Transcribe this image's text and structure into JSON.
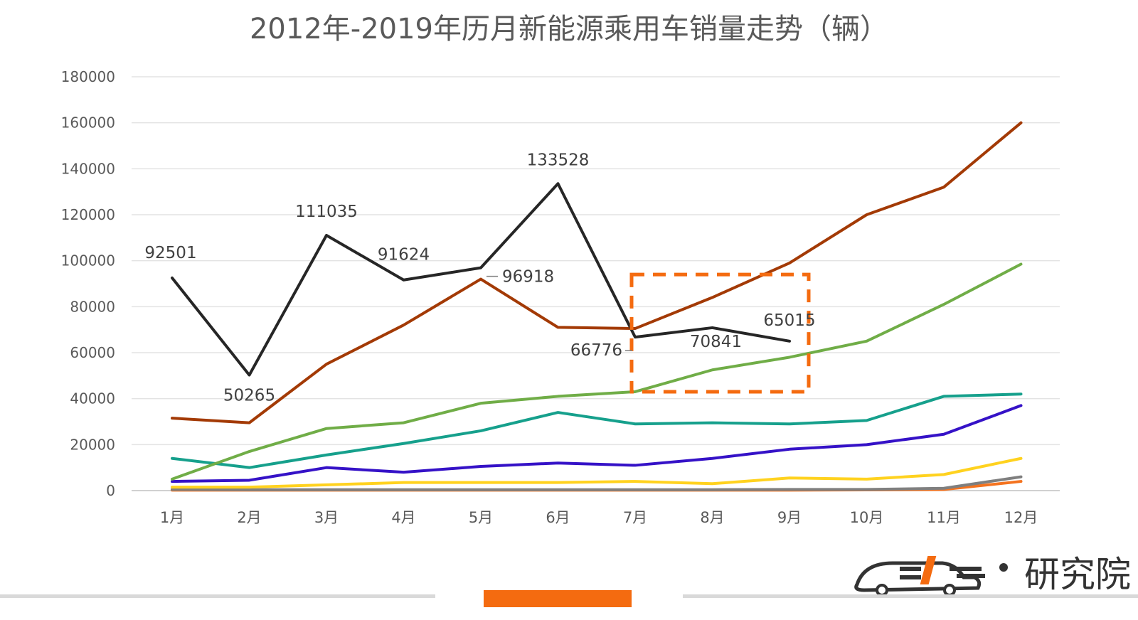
{
  "title": "2012年-2019年历月新能源乘用车销量走势（辆）",
  "chart_data": {
    "type": "line",
    "title": "2012年-2019年历月新能源乘用车销量走势（辆）",
    "categories": [
      "1月",
      "2月",
      "3月",
      "4月",
      "5月",
      "6月",
      "7月",
      "8月",
      "9月",
      "10月",
      "11月",
      "12月"
    ],
    "ylim": [
      0,
      180000
    ],
    "yticks": [
      "0",
      "20000",
      "40000",
      "60000",
      "80000",
      "100000",
      "120000",
      "140000",
      "160000",
      "180000"
    ],
    "grid": true,
    "series": [
      {
        "color": "#262626",
        "values": [
          92501,
          50265,
          111035,
          91624,
          96918,
          133528,
          66776,
          70841,
          65015,
          null,
          null,
          null
        ]
      },
      {
        "color": "#a33a05",
        "values": [
          31500,
          29500,
          55000,
          72000,
          92000,
          71000,
          70500,
          84000,
          99000,
          120000,
          132000,
          160000
        ]
      },
      {
        "color": "#70ad47",
        "values": [
          5000,
          17000,
          27000,
          29500,
          38000,
          41000,
          43000,
          52500,
          58000,
          65000,
          81000,
          98500
        ]
      },
      {
        "color": "#16a08c",
        "values": [
          14000,
          10000,
          15500,
          20500,
          26000,
          34000,
          29000,
          29500,
          29000,
          30500,
          41000,
          42000
        ]
      },
      {
        "color": "#3512c7",
        "values": [
          4000,
          4500,
          10000,
          8000,
          10500,
          12000,
          11000,
          14000,
          18000,
          20000,
          24500,
          37000
        ]
      },
      {
        "color": "#ffd21f",
        "values": [
          1500,
          1500,
          2500,
          3500,
          3500,
          3500,
          4000,
          3000,
          5500,
          5000,
          7000,
          14000
        ]
      },
      {
        "color": "#7f7f7f",
        "values": [
          500,
          400,
          400,
          400,
          400,
          400,
          400,
          400,
          500,
          500,
          1000,
          6000
        ]
      },
      {
        "color": "#f4731f",
        "values": [
          200,
          200,
          200,
          200,
          200,
          200,
          200,
          200,
          200,
          300,
          500,
          4000
        ]
      }
    ],
    "data_labels": [
      {
        "text": "92501",
        "cat": 0,
        "value": 92501
      },
      {
        "text": "50265",
        "cat": 1,
        "value": 50265
      },
      {
        "text": "111035",
        "cat": 2,
        "value": 111035
      },
      {
        "text": "91624",
        "cat": 3,
        "value": 91624
      },
      {
        "text": "96918",
        "cat": 4,
        "value": 96918
      },
      {
        "text": "133528",
        "cat": 5,
        "value": 133528
      },
      {
        "text": "66776",
        "cat": 6,
        "value": 66776
      },
      {
        "text": "70841",
        "cat": 7,
        "value": 70841
      },
      {
        "text": "65015",
        "cat": 8,
        "value": 65015
      }
    ],
    "highlight_color": "#f46b10"
  },
  "brand": {
    "name": "研究院"
  }
}
